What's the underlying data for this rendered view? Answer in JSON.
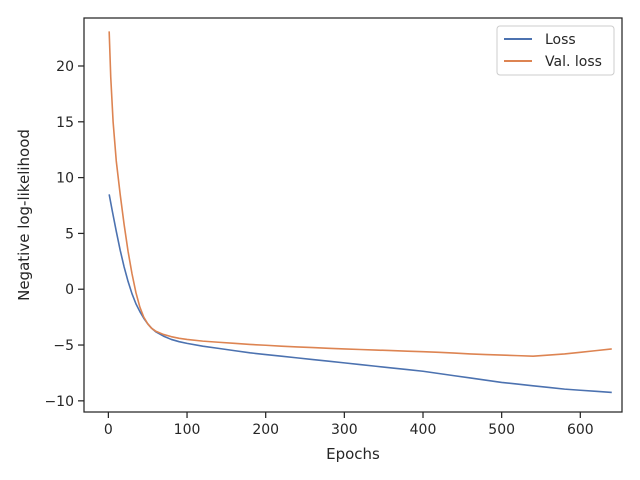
{
  "chart_data": {
    "type": "line",
    "title": "",
    "xlabel": "Epochs",
    "ylabel": "Negative log-likelihood",
    "xlim": [
      -31,
      653
    ],
    "ylim": [
      -11,
      24.3
    ],
    "xticks": [
      0,
      100,
      200,
      300,
      400,
      500,
      600
    ],
    "yticks": [
      -10,
      -5,
      0,
      5,
      10,
      15,
      20
    ],
    "grid": false,
    "legend": {
      "placement": "top-right"
    },
    "series": [
      {
        "name": "Loss",
        "color": "#4c72b0",
        "x": [
          1,
          5,
          10,
          15,
          20,
          25,
          30,
          35,
          40,
          45,
          50,
          55,
          60,
          70,
          80,
          90,
          100,
          120,
          140,
          160,
          180,
          200,
          220,
          240,
          260,
          280,
          300,
          320,
          340,
          360,
          380,
          400,
          420,
          440,
          460,
          480,
          500,
          520,
          540,
          560,
          580,
          600,
          620,
          640
        ],
        "values": [
          8.5,
          7.0,
          5.2,
          3.5,
          2.0,
          0.7,
          -0.4,
          -1.3,
          -2.0,
          -2.6,
          -3.1,
          -3.5,
          -3.8,
          -4.2,
          -4.5,
          -4.7,
          -4.85,
          -5.1,
          -5.3,
          -5.5,
          -5.7,
          -5.85,
          -6.0,
          -6.15,
          -6.3,
          -6.45,
          -6.6,
          -6.75,
          -6.9,
          -7.05,
          -7.2,
          -7.35,
          -7.55,
          -7.75,
          -7.95,
          -8.15,
          -8.35,
          -8.5,
          -8.65,
          -8.8,
          -8.95,
          -9.05,
          -9.15,
          -9.25
        ]
      },
      {
        "name": "Val. loss",
        "color": "#dd8452",
        "x": [
          1,
          3,
          6,
          10,
          15,
          20,
          25,
          30,
          35,
          40,
          45,
          50,
          55,
          60,
          70,
          80,
          90,
          100,
          120,
          140,
          160,
          180,
          200,
          220,
          240,
          260,
          280,
          300,
          320,
          340,
          360,
          380,
          400,
          420,
          440,
          460,
          480,
          500,
          520,
          540,
          560,
          580,
          600,
          620,
          640
        ],
        "values": [
          23.1,
          19.0,
          15.0,
          11.5,
          8.5,
          5.8,
          3.4,
          1.4,
          -0.3,
          -1.6,
          -2.5,
          -3.1,
          -3.5,
          -3.75,
          -4.05,
          -4.25,
          -4.4,
          -4.5,
          -4.65,
          -4.75,
          -4.85,
          -4.95,
          -5.02,
          -5.1,
          -5.17,
          -5.23,
          -5.29,
          -5.35,
          -5.4,
          -5.45,
          -5.5,
          -5.55,
          -5.6,
          -5.65,
          -5.72,
          -5.8,
          -5.85,
          -5.9,
          -5.95,
          -6.0,
          -5.9,
          -5.8,
          -5.65,
          -5.5,
          -5.35
        ]
      }
    ]
  }
}
